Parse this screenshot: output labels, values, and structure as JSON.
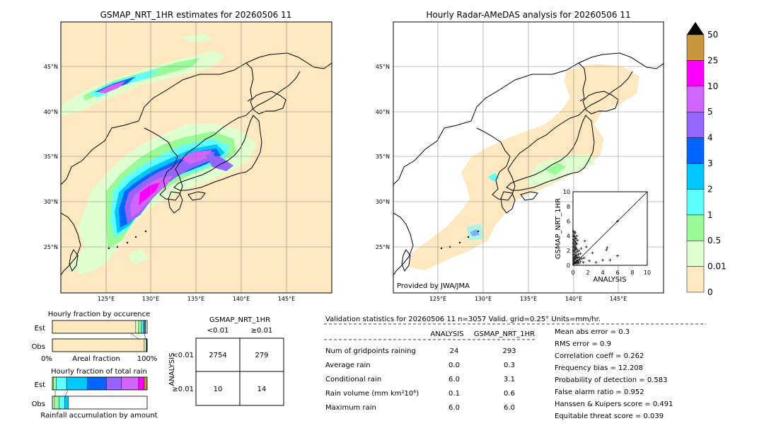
{
  "left_map": {
    "title": "GSMAP_NRT_1HR estimates for 20260506 11",
    "lat_labels": [
      "45°N",
      "40°N",
      "35°N",
      "30°N",
      "25°N"
    ],
    "lon_labels": [
      "125°E",
      "130°E",
      "135°E",
      "140°E",
      "145°E"
    ]
  },
  "right_map": {
    "title": "Hourly Radar-AMeDAS analysis for 20260506 11",
    "lat_labels": [
      "45°N",
      "40°N",
      "35°N",
      "30°N",
      "25°N"
    ],
    "lon_labels": [
      "125°E",
      "130°E",
      "135°E",
      "140°E",
      "145°E"
    ],
    "credit": "Provided by JWA/JMA"
  },
  "colorbar": {
    "labels": [
      "0",
      "0.01",
      "0.5",
      "1",
      "2",
      "3",
      "4",
      "5",
      "10",
      "25",
      "50"
    ],
    "colors": [
      "#fde8c0",
      "#e0ffd0",
      "#98fb98",
      "#60ffff",
      "#00c8ff",
      "#0064ff",
      "#9664ff",
      "#d264ff",
      "#ff00ff",
      "#c8963c"
    ]
  },
  "chart_data": [
    {
      "type": "scatter",
      "xlabel": "ANALYSIS",
      "ylabel": "GSMAP_NRT_1HR",
      "xlim": [
        0,
        10
      ],
      "ylim": [
        0,
        10
      ],
      "ticks": [
        "0",
        "2",
        "4",
        "6",
        "8",
        "10"
      ],
      "points": [
        [
          0.1,
          0.2
        ],
        [
          0.1,
          0.6
        ],
        [
          0.1,
          1.0
        ],
        [
          0.1,
          1.5
        ],
        [
          0.1,
          2.0
        ],
        [
          0.1,
          2.5
        ],
        [
          0.1,
          3.0
        ],
        [
          0.1,
          3.5
        ],
        [
          0.1,
          4.0
        ],
        [
          0.1,
          4.6
        ],
        [
          0.2,
          0.4
        ],
        [
          0.2,
          0.8
        ],
        [
          0.2,
          1.2
        ],
        [
          0.2,
          1.8
        ],
        [
          0.2,
          2.3
        ],
        [
          0.2,
          2.8
        ],
        [
          0.2,
          3.3
        ],
        [
          0.2,
          3.9
        ],
        [
          0.2,
          4.3
        ],
        [
          0.3,
          0.3
        ],
        [
          0.3,
          0.9
        ],
        [
          0.3,
          1.4
        ],
        [
          0.3,
          2.1
        ],
        [
          0.3,
          2.6
        ],
        [
          0.3,
          3.2
        ],
        [
          0.3,
          3.7
        ],
        [
          0.3,
          4.5
        ],
        [
          0.4,
          0.5
        ],
        [
          0.4,
          1.1
        ],
        [
          0.4,
          1.7
        ],
        [
          0.4,
          2.4
        ],
        [
          0.4,
          3.0
        ],
        [
          0.4,
          3.6
        ],
        [
          0.5,
          0.2
        ],
        [
          0.5,
          0.7
        ],
        [
          0.5,
          1.3
        ],
        [
          0.5,
          2.2
        ],
        [
          0.5,
          2.9
        ],
        [
          0.5,
          4.0
        ],
        [
          0.6,
          0.4
        ],
        [
          0.6,
          1.0
        ],
        [
          0.6,
          1.9
        ],
        [
          0.6,
          3.4
        ],
        [
          0.7,
          0.6
        ],
        [
          0.7,
          1.5
        ],
        [
          0.8,
          0.3
        ],
        [
          0.8,
          1.1
        ],
        [
          0.8,
          2.0
        ],
        [
          0.9,
          0.8
        ],
        [
          1.0,
          0.5
        ],
        [
          1.0,
          1.6
        ],
        [
          1.2,
          0.9
        ],
        [
          1.1,
          2.3
        ],
        [
          1.4,
          0.4
        ],
        [
          1.5,
          1.0
        ],
        [
          1.6,
          3.3
        ],
        [
          1.8,
          2.5
        ],
        [
          2.2,
          0.6
        ],
        [
          2.6,
          1.7
        ],
        [
          3.1,
          0.4
        ],
        [
          4.0,
          0.7
        ],
        [
          4.5,
          2.1
        ],
        [
          4.6,
          2.4
        ],
        [
          5.0,
          0.7
        ],
        [
          6.0,
          1.3
        ],
        [
          6.0,
          6.0
        ]
      ]
    },
    {
      "type": "bar",
      "title": "Hourly fraction by occurence",
      "categories": [
        "Est",
        "Obs"
      ],
      "xlabel": "Areal fraction",
      "xticks": [
        "0%",
        "100%"
      ],
      "series": [
        {
          "values": [
            0.88,
            0.97
          ]
        },
        {
          "values": [
            0.03,
            0.02
          ]
        },
        {
          "values": [
            0.03,
            0.005
          ]
        },
        {
          "values": [
            0.02,
            0.003
          ]
        },
        {
          "values": [
            0.015,
            0.001
          ]
        },
        {
          "values": [
            0.01,
            0.001
          ]
        }
      ]
    },
    {
      "type": "bar",
      "title": "Hourly fraction of total rain",
      "categories": [
        "Est",
        "Obs"
      ],
      "xlabel": "Rainfall accumulation by amount",
      "series": [
        {
          "values": [
            0.01,
            0.02
          ]
        },
        {
          "values": [
            0.03,
            0.05
          ]
        },
        {
          "values": [
            0.11,
            0.06
          ]
        },
        {
          "values": [
            0.22,
            0.04
          ]
        },
        {
          "values": [
            0.2,
            0.0
          ]
        },
        {
          "values": [
            0.16,
            0.0
          ]
        },
        {
          "values": [
            0.18,
            0.0
          ]
        },
        {
          "values": [
            0.06,
            0.0
          ]
        },
        {
          "values": [
            0.03,
            0.0
          ]
        }
      ]
    },
    {
      "type": "table",
      "title": "GSMAP_NRT_1HR",
      "col_headers": [
        "<0.01",
        "≥0.01"
      ],
      "row_label": "ANALYSIS",
      "row_headers": [
        "<0.01",
        "≥0.01"
      ],
      "cells": [
        [
          "2754",
          "279"
        ],
        [
          "10",
          "14"
        ]
      ]
    }
  ],
  "stats": {
    "header": "Validation statistics for 20260506 11  n=3057 Valid. grid=0.25° Units=mm/hr.",
    "col_analysis": "ANALYSIS",
    "col_gsmap": "GSMAP_NRT_1HR",
    "rows": [
      {
        "label": "Num of gridpoints raining",
        "analysis": "24",
        "gsmap": "293"
      },
      {
        "label": "Average rain",
        "analysis": "0.0",
        "gsmap": "0.3"
      },
      {
        "label": "Conditional rain",
        "analysis": "6.0",
        "gsmap": "3.1"
      },
      {
        "label": "Rain volume (mm km²10⁶)",
        "analysis": "0.1",
        "gsmap": "0.6"
      },
      {
        "label": "Maximum rain",
        "analysis": "6.0",
        "gsmap": "6.0"
      }
    ],
    "scores": [
      "Mean abs error =    0.3",
      "RMS error =    0.9",
      "Correlation coeff =  0.262",
      "Frequency bias = 12.208",
      "Probability of detection =  0.583",
      "False alarm ratio =  0.952",
      "Hanssen & Kuipers score =  0.491",
      "Equitable threat score =  0.039"
    ]
  }
}
